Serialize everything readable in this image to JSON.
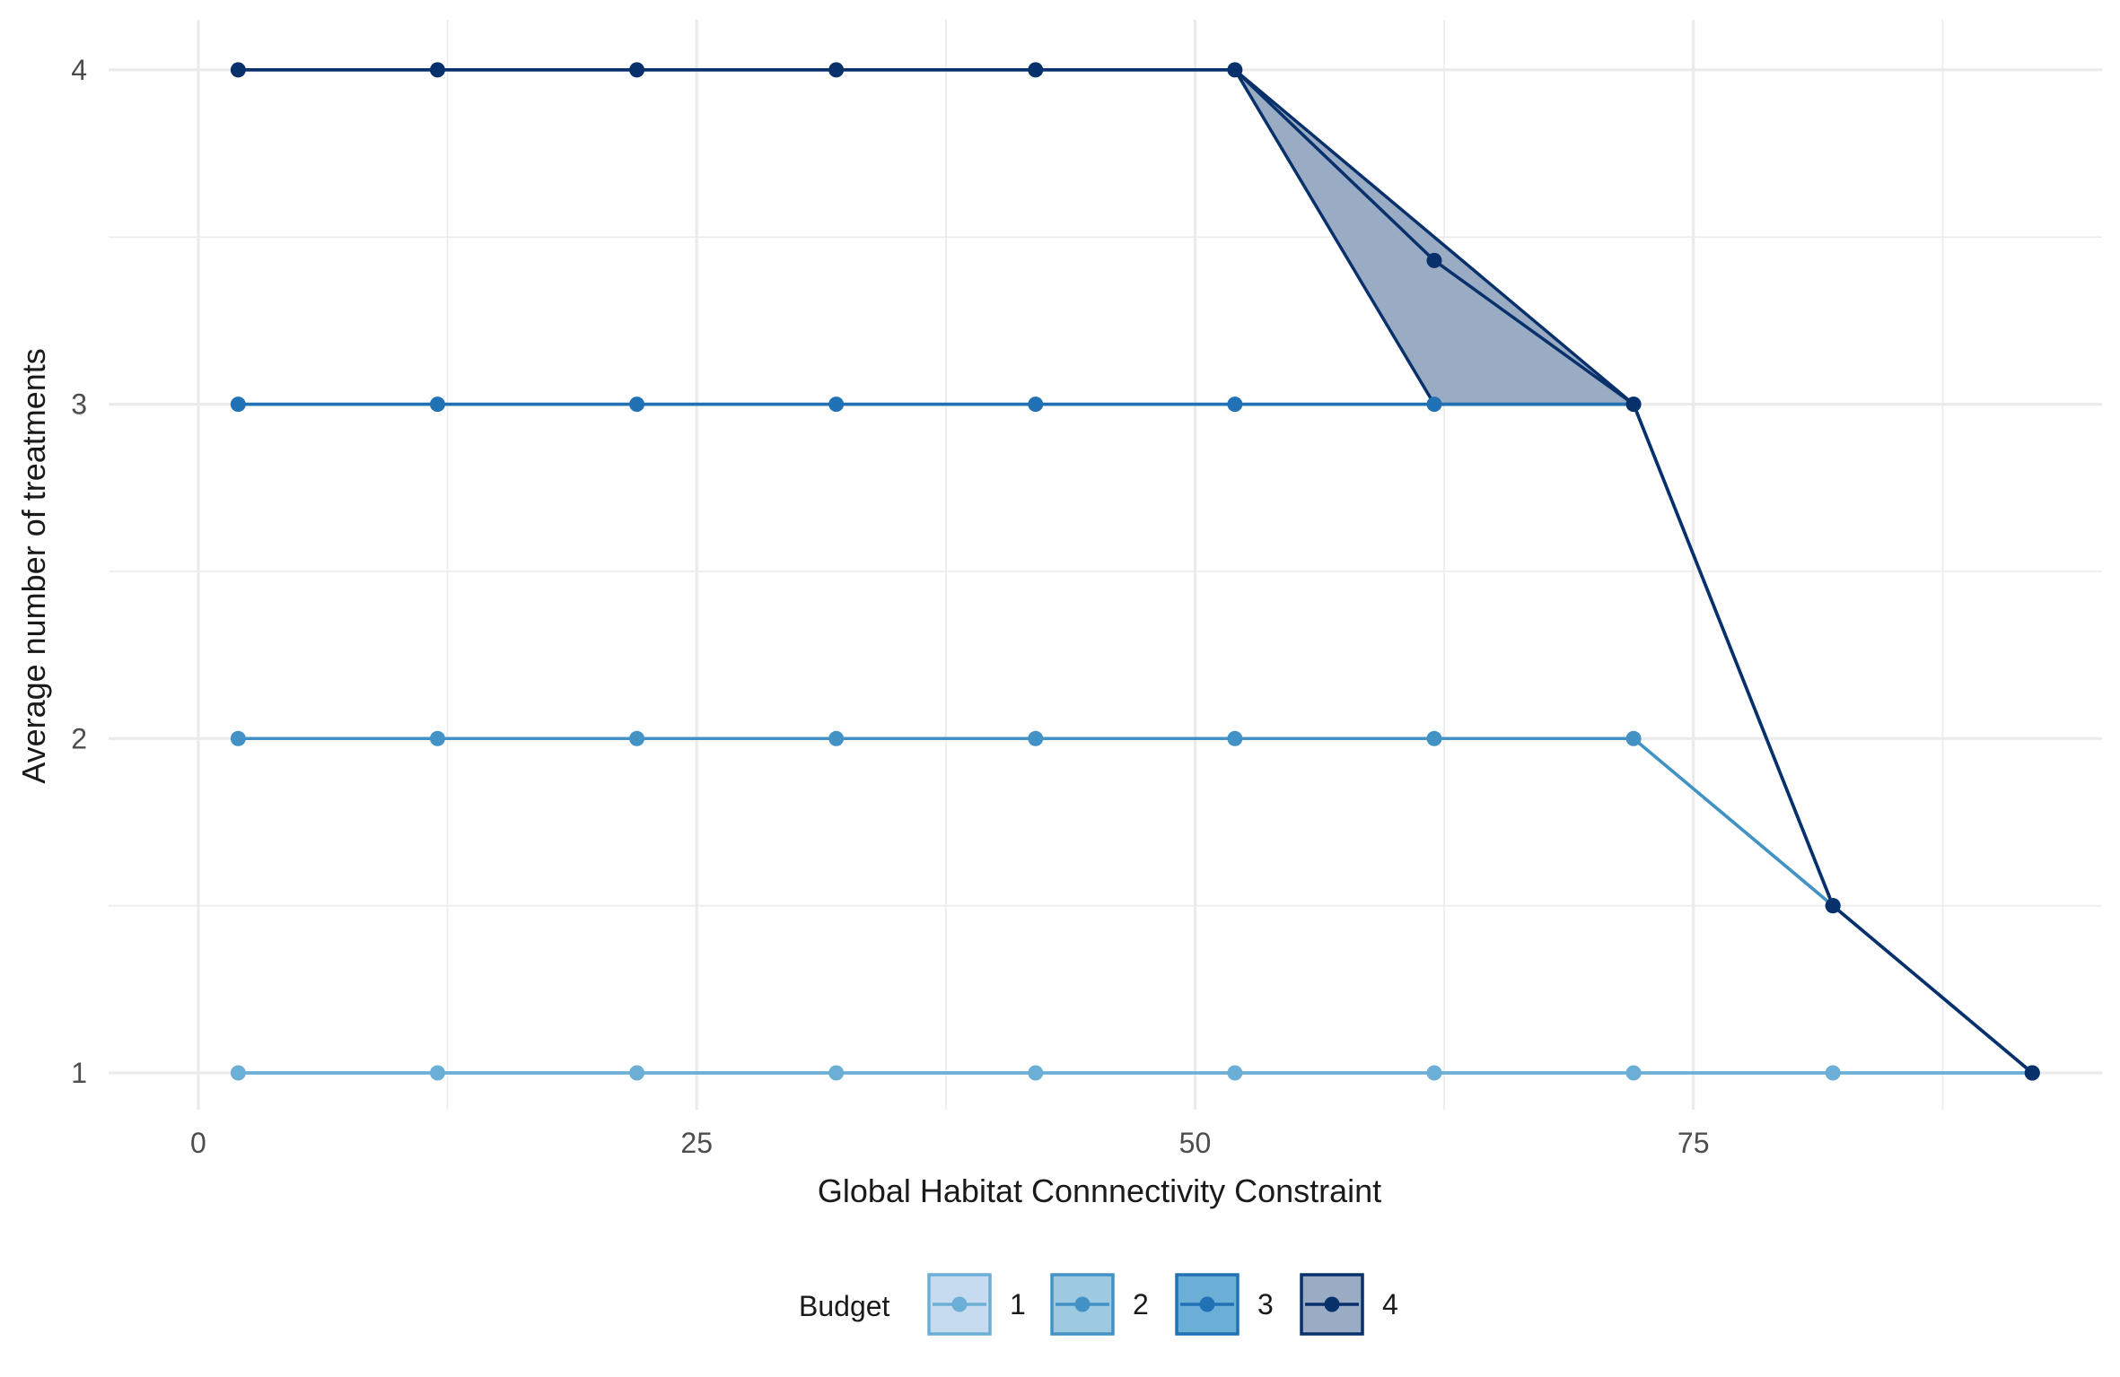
{
  "chart_data": {
    "type": "line",
    "xlabel": "Global Habitat Connnectivity Constraint",
    "ylabel": "Average number of treatments",
    "xlim": [
      -4.5,
      95.5
    ],
    "ylim": [
      0.89,
      4.15
    ],
    "x_ticks": [
      0,
      25,
      50,
      75
    ],
    "x_tick_labels": [
      "0",
      "25",
      "50",
      "75"
    ],
    "y_ticks": [
      1,
      2,
      3,
      4
    ],
    "y_tick_labels": [
      "1",
      "2",
      "3",
      "4"
    ],
    "grid": true,
    "legend": {
      "title": "Budget",
      "position": "bottom"
    },
    "x": [
      2,
      12,
      22,
      32,
      42,
      52,
      62,
      72,
      82,
      92
    ],
    "series": [
      {
        "name": "1",
        "color": "#6baed6",
        "fill": "#c6dbef",
        "values": [
          1,
          1,
          1,
          1,
          1,
          1,
          1,
          1,
          1,
          1
        ],
        "ribbon_low": [
          1,
          1,
          1,
          1,
          1,
          1,
          1,
          1,
          1,
          1
        ],
        "ribbon_high": [
          1,
          1,
          1,
          1,
          1,
          1,
          1,
          1,
          1,
          1
        ]
      },
      {
        "name": "2",
        "color": "#4292c6",
        "fill": "#9ecae1",
        "values": [
          2,
          2,
          2,
          2,
          2,
          2,
          2,
          2,
          1.5,
          1
        ],
        "ribbon_low": [
          2,
          2,
          2,
          2,
          2,
          2,
          2,
          2,
          1.5,
          1
        ],
        "ribbon_high": [
          2,
          2,
          2,
          2,
          2,
          2,
          2,
          2,
          1.5,
          1
        ]
      },
      {
        "name": "3",
        "color": "#2171b5",
        "fill": "#6baed6",
        "values": [
          3,
          3,
          3,
          3,
          3,
          3,
          3,
          3,
          1.5,
          1
        ],
        "ribbon_low": [
          3,
          3,
          3,
          3,
          3,
          3,
          3,
          3,
          1.5,
          1
        ],
        "ribbon_high": [
          3,
          3,
          3,
          3,
          3,
          3,
          3,
          3,
          1.5,
          1
        ]
      },
      {
        "name": "4",
        "color": "#08306b",
        "fill": "#9aabc4",
        "values": [
          4,
          4,
          4,
          4,
          4,
          4,
          3.43,
          3,
          1.5,
          1
        ],
        "ribbon_low": [
          4,
          4,
          4,
          4,
          4,
          4,
          3,
          3,
          1.5,
          1
        ],
        "ribbon_high": [
          4,
          4,
          4,
          4,
          4,
          4,
          3.5,
          3,
          1.5,
          1
        ]
      }
    ]
  }
}
